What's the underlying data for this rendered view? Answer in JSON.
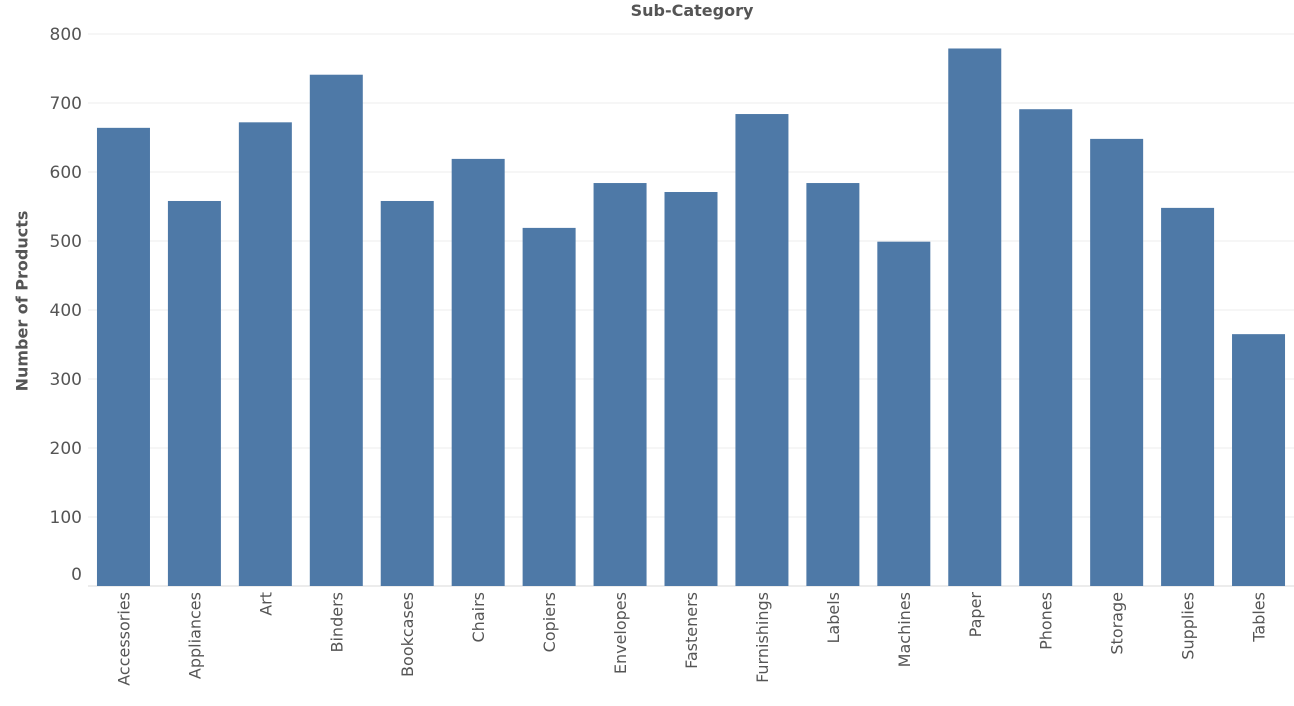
{
  "chart_data": {
    "type": "bar",
    "title": "Sub-Category",
    "ylabel": "Number of Products",
    "xlabel": "",
    "ylim": [
      0,
      800
    ],
    "yticks": [
      0,
      100,
      200,
      300,
      400,
      500,
      600,
      700,
      800
    ],
    "grid": true,
    "bar_color": "#4e79a7",
    "categories": [
      "Accessories",
      "Appliances",
      "Art",
      "Binders",
      "Bookcases",
      "Chairs",
      "Copiers",
      "Envelopes",
      "Fasteners",
      "Furnishings",
      "Labels",
      "Machines",
      "Paper",
      "Phones",
      "Storage",
      "Supplies",
      "Tables"
    ],
    "values": [
      664,
      558,
      672,
      741,
      558,
      619,
      519,
      584,
      571,
      684,
      584,
      499,
      779,
      691,
      648,
      548,
      365
    ]
  }
}
